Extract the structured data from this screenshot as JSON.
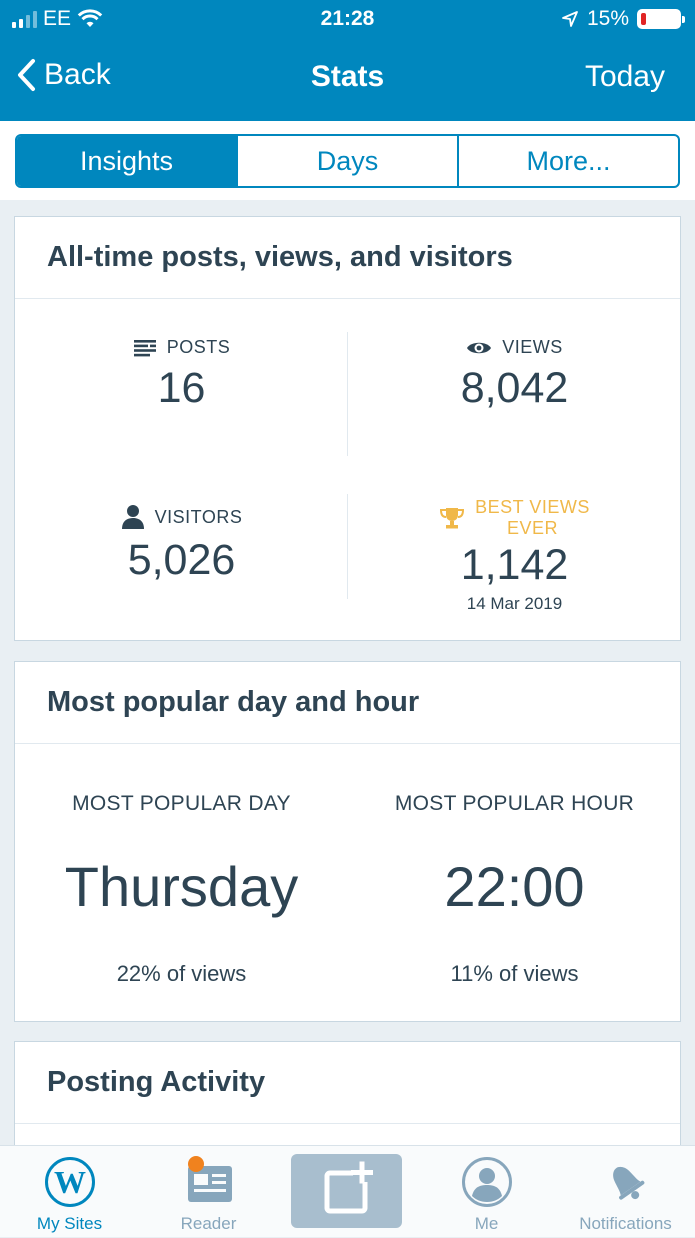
{
  "status_bar": {
    "carrier": "EE",
    "time": "21:28",
    "battery_percent": "15%",
    "battery_level": 0.15
  },
  "nav": {
    "back_label": "Back",
    "title": "Stats",
    "right_label": "Today"
  },
  "segments": [
    {
      "label": "Insights",
      "active": true
    },
    {
      "label": "Days",
      "active": false
    },
    {
      "label": "More...",
      "active": false
    }
  ],
  "all_time": {
    "title": "All-time posts, views, and visitors",
    "posts": {
      "label": "POSTS",
      "value": "16",
      "icon": "posts-icon"
    },
    "views": {
      "label": "VIEWS",
      "value": "8,042",
      "icon": "eye-icon"
    },
    "visitors": {
      "label": "VISITORS",
      "value": "5,026",
      "icon": "person-icon"
    },
    "best_views": {
      "label_line1": "BEST VIEWS",
      "label_line2": "EVER",
      "value": "1,142",
      "date": "14 Mar 2019",
      "icon": "trophy-icon"
    }
  },
  "most_popular": {
    "title": "Most popular day and hour",
    "day": {
      "label": "MOST POPULAR DAY",
      "value": "Thursday",
      "percent": "22% of views"
    },
    "hour": {
      "label": "MOST POPULAR HOUR",
      "value": "22:00",
      "percent": "11% of views"
    }
  },
  "posting_activity": {
    "title": "Posting Activity"
  },
  "tabbar": [
    {
      "label": "My Sites",
      "icon": "wordpress-icon",
      "active": true
    },
    {
      "label": "Reader",
      "icon": "reader-icon",
      "active": false
    },
    {
      "label": "",
      "icon": "new-post-icon",
      "active": false
    },
    {
      "label": "Me",
      "icon": "me-icon",
      "active": false
    },
    {
      "label": "Notifications",
      "icon": "bell-icon",
      "active": false
    }
  ],
  "colors": {
    "brand": "#0087be",
    "gold": "#f0b849",
    "badge": "#f0821e"
  }
}
